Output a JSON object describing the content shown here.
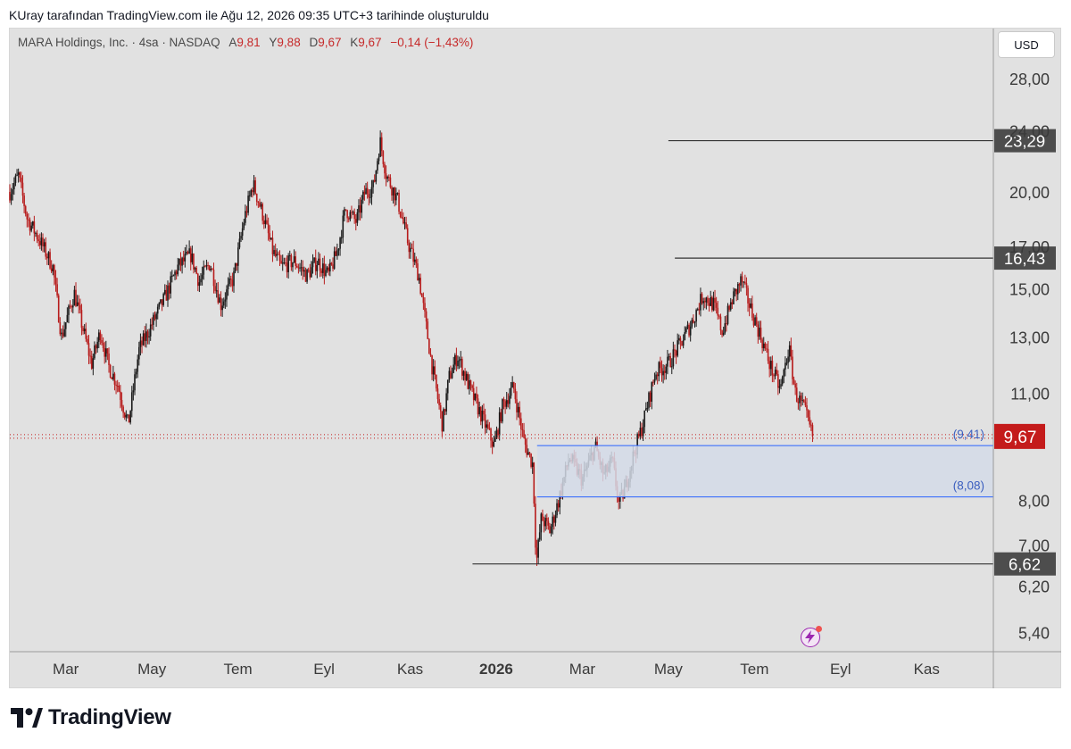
{
  "caption": "KUray tarafından TradingView.com ile Ağu 12, 2026 09:35 UTC+3 tarihinde oluşturuldu",
  "legend": {
    "symbol": "MARA Holdings, Inc. · 4sa · NASDAQ",
    "open_label": "A",
    "open": "9,81",
    "high_label": "Y",
    "high": "9,88",
    "low_label": "D",
    "low": "9,67",
    "close_label": "K",
    "close": "9,67",
    "change": "−0,14 (−1,43%)"
  },
  "currency_button": "USD",
  "brand": "TradingView",
  "colors": {
    "background": "#e1e1e1",
    "candle_up": "#1a1a1a",
    "candle_down": "#b71c1c",
    "level_line": "#333333",
    "zone_fill": "#d4dae8",
    "zone_line": "#2962ff",
    "price_badge": "#c41b1b",
    "level_badge": "#4d4d4d"
  },
  "chart_data": {
    "type": "candlestick",
    "scale": "log",
    "ylim": [
      5.1,
      32.5
    ],
    "y_ticks": [
      {
        "value": 28.0,
        "label": "28,00"
      },
      {
        "value": 24.0,
        "label": "24,00"
      },
      {
        "value": 20.0,
        "label": "20,00"
      },
      {
        "value": 17.0,
        "label": "17,00"
      },
      {
        "value": 15.0,
        "label": "15,00"
      },
      {
        "value": 13.0,
        "label": "13,00"
      },
      {
        "value": 11.0,
        "label": "11,00"
      },
      {
        "value": 8.0,
        "label": "8,00"
      },
      {
        "value": 7.0,
        "label": "7,00"
      },
      {
        "value": 6.2,
        "label": "6,20"
      },
      {
        "value": 5.4,
        "label": "5,40"
      }
    ],
    "x_ticks": [
      {
        "month": 3,
        "label": "Mar"
      },
      {
        "month": 5,
        "label": "May"
      },
      {
        "month": 7,
        "label": "Tem"
      },
      {
        "month": 9,
        "label": "Eyl"
      },
      {
        "month": 11,
        "label": "Kas"
      },
      {
        "month": 13,
        "label": "2026",
        "bold": true
      },
      {
        "month": 15,
        "label": "Mar"
      },
      {
        "month": 17,
        "label": "May"
      },
      {
        "month": 19,
        "label": "Tem"
      },
      {
        "month": 21,
        "label": "Eyl"
      },
      {
        "month": 23,
        "label": "Kas"
      }
    ],
    "x_range_months": [
      1.7,
      24.55
    ],
    "price_path": [
      [
        1.7,
        20.0
      ],
      [
        1.9,
        21.0
      ],
      [
        2.1,
        18.5
      ],
      [
        2.4,
        17.3
      ],
      [
        2.7,
        16.0
      ],
      [
        2.9,
        13.0
      ],
      [
        3.2,
        14.8
      ],
      [
        3.4,
        13.3
      ],
      [
        3.6,
        12.0
      ],
      [
        3.8,
        13.2
      ],
      [
        4.0,
        11.9
      ],
      [
        4.2,
        11.3
      ],
      [
        4.45,
        10.0
      ],
      [
        4.7,
        12.5
      ],
      [
        5.0,
        13.5
      ],
      [
        5.3,
        14.6
      ],
      [
        5.6,
        16.0
      ],
      [
        5.9,
        16.6
      ],
      [
        6.1,
        15.3
      ],
      [
        6.35,
        16.2
      ],
      [
        6.6,
        14.3
      ],
      [
        6.9,
        15.5
      ],
      [
        7.15,
        18.5
      ],
      [
        7.35,
        20.5
      ],
      [
        7.6,
        18.5
      ],
      [
        7.8,
        16.8
      ],
      [
        8.0,
        16.0
      ],
      [
        8.3,
        16.3
      ],
      [
        8.6,
        15.6
      ],
      [
        8.85,
        16.3
      ],
      [
        9.1,
        15.6
      ],
      [
        9.3,
        16.7
      ],
      [
        9.5,
        19.0
      ],
      [
        9.75,
        18.3
      ],
      [
        9.95,
        20.0
      ],
      [
        10.15,
        20.3
      ],
      [
        10.3,
        23.3
      ],
      [
        10.45,
        21.0
      ],
      [
        10.7,
        19.6
      ],
      [
        10.95,
        17.2
      ],
      [
        11.2,
        15.6
      ],
      [
        11.5,
        12.0
      ],
      [
        11.75,
        10.0
      ],
      [
        11.9,
        11.5
      ],
      [
        12.1,
        12.3
      ],
      [
        12.4,
        11.1
      ],
      [
        12.65,
        10.3
      ],
      [
        12.95,
        9.4
      ],
      [
        13.15,
        10.6
      ],
      [
        13.4,
        11.2
      ],
      [
        13.65,
        9.5
      ],
      [
        13.85,
        8.9
      ],
      [
        13.93,
        6.62
      ],
      [
        14.05,
        7.6
      ],
      [
        14.25,
        7.3
      ],
      [
        14.45,
        8.0
      ],
      [
        14.7,
        9.1
      ],
      [
        15.0,
        8.5
      ],
      [
        15.3,
        9.4
      ],
      [
        15.5,
        8.6
      ],
      [
        15.7,
        9.0
      ],
      [
        15.85,
        7.9
      ],
      [
        16.0,
        8.3
      ],
      [
        16.15,
        9.0
      ],
      [
        16.4,
        10.0
      ],
      [
        16.7,
        11.7
      ],
      [
        17.0,
        12.0
      ],
      [
        17.3,
        12.8
      ],
      [
        17.55,
        13.6
      ],
      [
        17.8,
        14.7
      ],
      [
        18.05,
        14.3
      ],
      [
        18.25,
        13.2
      ],
      [
        18.5,
        14.6
      ],
      [
        18.7,
        15.4
      ],
      [
        18.9,
        14.2
      ],
      [
        19.15,
        13.0
      ],
      [
        19.35,
        12.0
      ],
      [
        19.6,
        11.1
      ],
      [
        19.8,
        12.6
      ],
      [
        19.95,
        11.0
      ],
      [
        20.15,
        10.5
      ],
      [
        20.35,
        9.67
      ]
    ],
    "last_price": {
      "value": 9.67,
      "label": "9,67"
    },
    "horizontal_levels": [
      {
        "value": 23.29,
        "label": "23,29",
        "x_start_month": 17.0
      },
      {
        "value": 16.43,
        "label": "16,43",
        "x_start_month": 17.15
      },
      {
        "value": 6.62,
        "label": "6,62",
        "x_start_month": 12.45
      }
    ],
    "zone": {
      "upper": 9.41,
      "upper_label": "(9,41)",
      "lower": 8.08,
      "lower_label": "(8,08)",
      "x_start_month": 13.95
    },
    "grid": false
  }
}
